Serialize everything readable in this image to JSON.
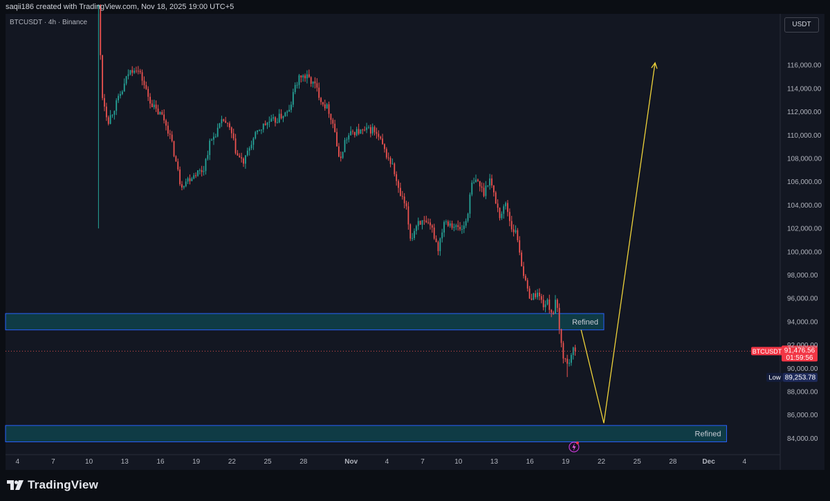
{
  "header": {
    "created_by": "saqii186 created with TradingView.com, Nov 18, 2025 19:00 UTC+5"
  },
  "symbol_info": "BTCUSDT · 4h · Binance",
  "currency_label": "USDT",
  "brand": "TradingView",
  "colors": {
    "background": "#131722",
    "up": "#26a69a",
    "down": "#ef5350",
    "zone_fill": "#0f3b45",
    "zone_border": "#2962ff",
    "arrow": "#f0d43a"
  },
  "chart_data": {
    "type": "candlestick",
    "symbol": "BTCUSDT",
    "interval": "4h",
    "exchange": "Binance",
    "ylim": [
      82600,
      120400
    ],
    "y_ticks": [
      "116,000.00",
      "114,000.00",
      "112,000.00",
      "110,000.00",
      "108,000.00",
      "106,000.00",
      "104,000.00",
      "102,000.00",
      "100,000.00",
      "98,000.00",
      "96,000.00",
      "94,000.00",
      "92,000.00",
      "90,000.00",
      "88,000.00",
      "86,000.00",
      "84,000.00"
    ],
    "y_tick_values": [
      116000,
      114000,
      112000,
      110000,
      108000,
      106000,
      104000,
      102000,
      100000,
      98000,
      96000,
      94000,
      92000,
      90000,
      88000,
      86000,
      84000
    ],
    "x_ticks": [
      {
        "label": "4",
        "day": 4
      },
      {
        "label": "7",
        "day": 7
      },
      {
        "label": "10",
        "day": 10
      },
      {
        "label": "13",
        "day": 13
      },
      {
        "label": "16",
        "day": 16
      },
      {
        "label": "19",
        "day": 19
      },
      {
        "label": "22",
        "day": 22
      },
      {
        "label": "25",
        "day": 25
      },
      {
        "label": "28",
        "day": 28
      },
      {
        "label": "Nov",
        "day": 32
      },
      {
        "label": "4",
        "day": 35
      },
      {
        "label": "7",
        "day": 38
      },
      {
        "label": "10",
        "day": 41
      },
      {
        "label": "13",
        "day": 44
      },
      {
        "label": "16",
        "day": 47
      },
      {
        "label": "19",
        "day": 50
      },
      {
        "label": "22",
        "day": 53
      },
      {
        "label": "25",
        "day": 56
      },
      {
        "label": "28",
        "day": 59
      },
      {
        "label": "Dec",
        "day": 62
      },
      {
        "label": "4",
        "day": 65
      }
    ],
    "x_day_range": [
      3,
      68
    ],
    "price_path": [
      [
        10.8,
        121000
      ],
      [
        11.1,
        113500
      ],
      [
        11.6,
        111200
      ],
      [
        12.2,
        112500
      ],
      [
        12.8,
        113800
      ],
      [
        13.3,
        115300
      ],
      [
        13.9,
        115900
      ],
      [
        14.4,
        115000
      ],
      [
        15.0,
        113200
      ],
      [
        15.6,
        112100
      ],
      [
        16.2,
        111600
      ],
      [
        16.7,
        110300
      ],
      [
        17.2,
        108200
      ],
      [
        17.7,
        105700
      ],
      [
        18.3,
        106200
      ],
      [
        19.0,
        106800
      ],
      [
        19.6,
        107000
      ],
      [
        20.1,
        109200
      ],
      [
        20.7,
        110300
      ],
      [
        21.3,
        111300
      ],
      [
        21.9,
        110300
      ],
      [
        22.4,
        108300
      ],
      [
        23.0,
        107600
      ],
      [
        23.6,
        109300
      ],
      [
        24.3,
        110500
      ],
      [
        25.0,
        111100
      ],
      [
        25.6,
        111200
      ],
      [
        26.2,
        111700
      ],
      [
        26.8,
        112000
      ],
      [
        27.3,
        114200
      ],
      [
        27.8,
        115100
      ],
      [
        28.4,
        114900
      ],
      [
        29.0,
        114200
      ],
      [
        29.6,
        112800
      ],
      [
        30.1,
        112200
      ],
      [
        30.6,
        110600
      ],
      [
        31.0,
        107600
      ],
      [
        31.5,
        109600
      ],
      [
        32.2,
        110300
      ],
      [
        33.0,
        110300
      ],
      [
        33.8,
        110500
      ],
      [
        34.4,
        109600
      ],
      [
        34.9,
        108400
      ],
      [
        35.5,
        107300
      ],
      [
        36.0,
        105100
      ],
      [
        36.6,
        103800
      ],
      [
        37.0,
        101000
      ],
      [
        37.6,
        102700
      ],
      [
        38.3,
        102300
      ],
      [
        38.8,
        101900
      ],
      [
        39.3,
        100300
      ],
      [
        39.8,
        102700
      ],
      [
        40.3,
        102500
      ],
      [
        40.8,
        102100
      ],
      [
        41.3,
        101900
      ],
      [
        41.7,
        102800
      ],
      [
        42.1,
        105700
      ],
      [
        42.6,
        106100
      ],
      [
        43.1,
        105000
      ],
      [
        43.6,
        106400
      ],
      [
        44.0,
        104800
      ],
      [
        44.5,
        103000
      ],
      [
        45.0,
        104200
      ],
      [
        45.4,
        102200
      ],
      [
        45.9,
        101500
      ],
      [
        46.3,
        99000
      ],
      [
        46.7,
        96900
      ],
      [
        47.1,
        96000
      ],
      [
        47.6,
        96500
      ],
      [
        48.1,
        95500
      ],
      [
        48.5,
        95600
      ],
      [
        48.9,
        94600
      ],
      [
        49.2,
        95900
      ],
      [
        49.5,
        92900
      ],
      [
        49.8,
        91100
      ],
      [
        50.2,
        90200
      ],
      [
        50.5,
        91400
      ],
      [
        50.8,
        91476
      ]
    ],
    "zones": [
      {
        "label": "Refined",
        "top": 94700,
        "bottom": 93300,
        "x_start_day": 3,
        "x_end_day": 53.2
      },
      {
        "label": "Refined",
        "top": 85100,
        "bottom": 83700,
        "x_start_day": 3,
        "x_end_day": 63.5
      }
    ],
    "projection": [
      [
        51.3,
        93300
      ],
      [
        53.2,
        85300
      ],
      [
        57.5,
        116200
      ]
    ],
    "last_price": {
      "symbol": "BTCUSDT",
      "price": "91,476.56",
      "countdown": "01:59:56",
      "value": 91476.56
    },
    "low": {
      "label": "Low",
      "price": "89,253.78",
      "value": 89253.78
    }
  }
}
